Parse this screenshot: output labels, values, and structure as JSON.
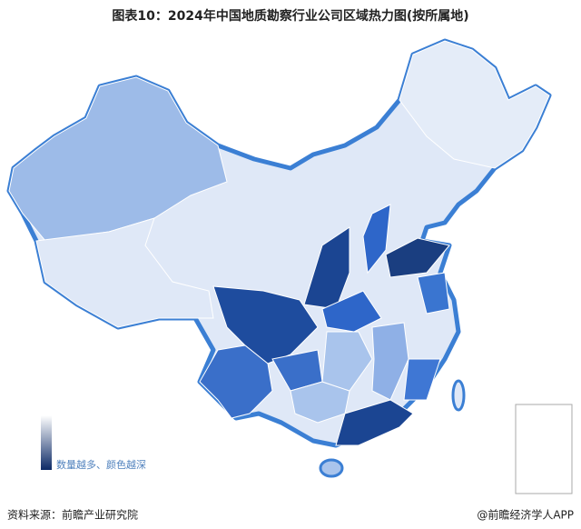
{
  "header": {
    "title": "图表10：2024年中国地质勘察行业公司区域热力图(按所属地)"
  },
  "legend": {
    "label": "数量越多、颜色越深"
  },
  "footer": {
    "source": "资料来源：前瞻产业研究院",
    "credit": "@前瞻经济学人APP"
  }
}
